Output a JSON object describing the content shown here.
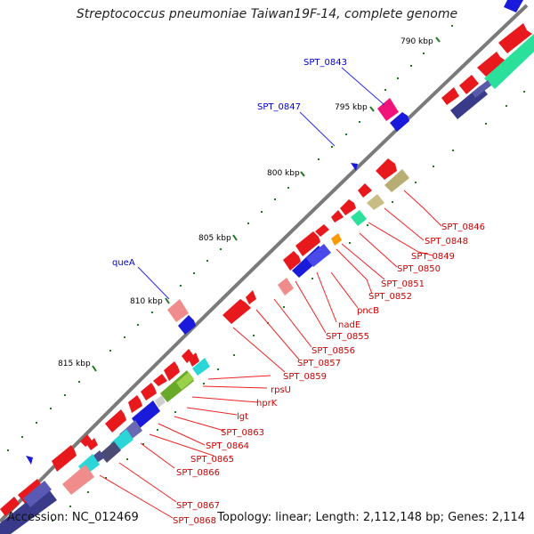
{
  "title": "Streptococcus pneumoniae Taiwan19F-14, complete genome",
  "accession_label": "Accession: NC_012469",
  "summary_label": "Topology: linear; Length: 2,112,148 bp; Genes: 2,114",
  "colors": {
    "backbone": "#7a7a7a",
    "tick": "#1f7a1f",
    "label_blue": "#0000cc",
    "label_red": "#cc0000",
    "leader_red": "#ee2222",
    "leader_blue": "#2a2aee"
  },
  "ticks": [
    {
      "label": "790 kbp"
    },
    {
      "label": "795 kbp"
    },
    {
      "label": "800 kbp"
    },
    {
      "label": "805 kbp"
    },
    {
      "label": "810 kbp"
    },
    {
      "label": "815 kbp"
    }
  ],
  "labels_blue": [
    "SPT_0843",
    "SPT_0847",
    "queA"
  ],
  "labels_red": [
    "SPT_0846",
    "SPT_0848",
    "SPT_0849",
    "SPT_0850",
    "SPT_0851",
    "SPT_0852",
    "pncB",
    "nadE",
    "SPT_0855",
    "SPT_0856",
    "SPT_0857",
    "SPT_0859",
    "rpsU",
    "hprK",
    "lgt",
    "SPT_0863",
    "SPT_0864",
    "SPT_0865",
    "SPT_0866",
    "SPT_0867",
    "SPT_0868"
  ]
}
